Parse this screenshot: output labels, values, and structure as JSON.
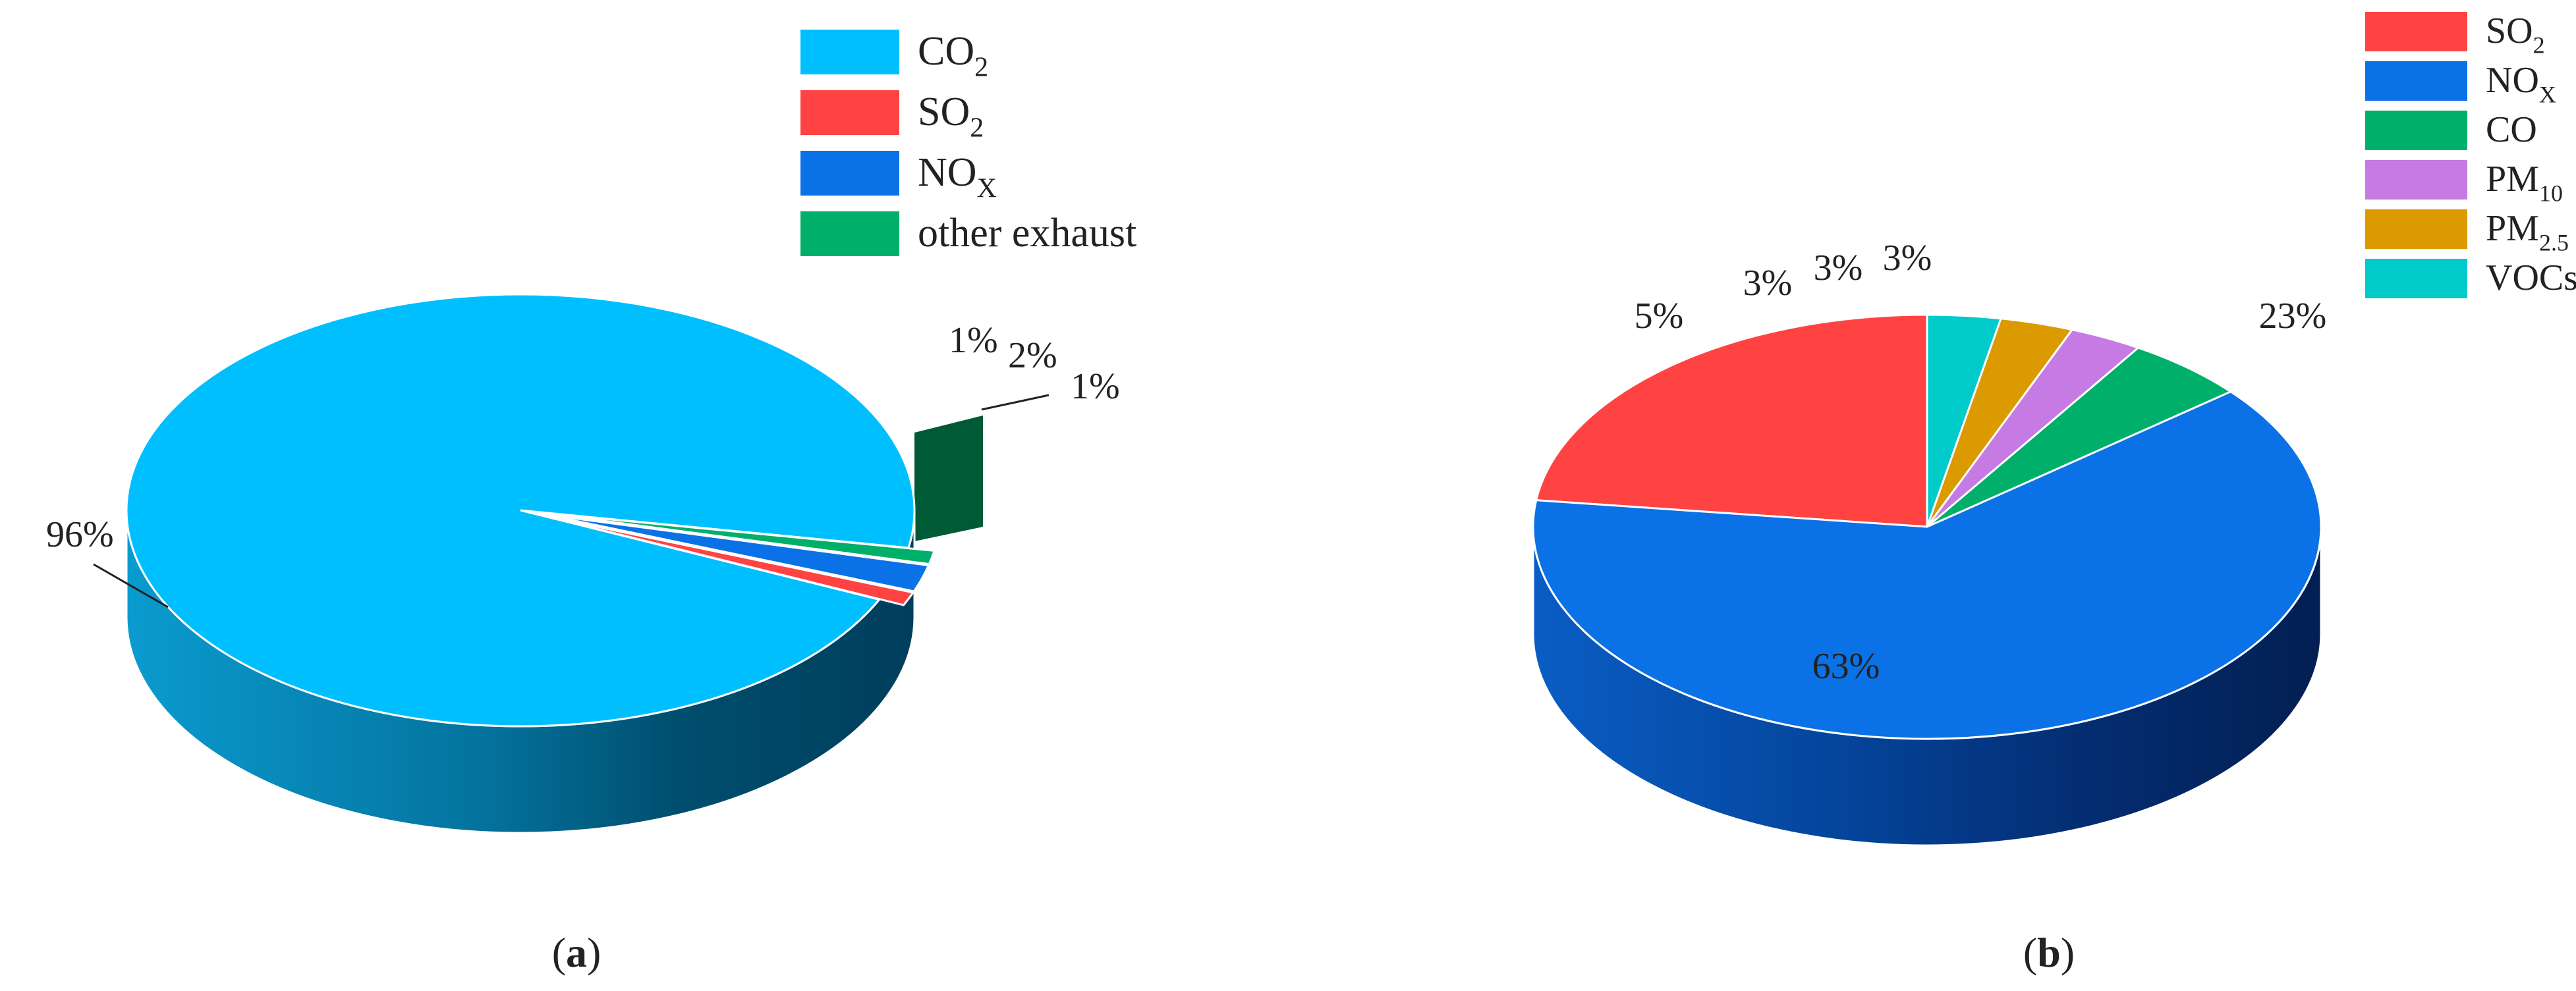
{
  "chart_data": [
    {
      "type": "pie",
      "panel_label": "a",
      "categories": [
        "CO2",
        "SO2",
        "NOX",
        "other exhaust"
      ],
      "values": [
        96,
        1,
        2,
        1
      ],
      "value_labels": [
        "96%",
        "1%",
        "2%",
        "1%"
      ],
      "colors": [
        "#00BFFF",
        "#FF4343",
        "#0A71E6",
        "#00AF6A"
      ],
      "legend": [
        {
          "main": "CO",
          "sub": "2",
          "color": "#00BFFF"
        },
        {
          "main": "SO",
          "sub": "2",
          "color": "#FF4343"
        },
        {
          "main": "NO",
          "sub": "X",
          "color": "#0A71E6"
        },
        {
          "main": "other exhaust",
          "sub": "",
          "color": "#00AF6A"
        }
      ],
      "exploded": [
        false,
        true,
        true,
        true
      ],
      "legend_position": "top-right"
    },
    {
      "type": "pie",
      "panel_label": "b",
      "categories": [
        "SO2",
        "NOX",
        "CO",
        "PM10",
        "PM2.5",
        "VOCs"
      ],
      "values": [
        23,
        63,
        5,
        3,
        3,
        3
      ],
      "value_labels": [
        "23%",
        "63%",
        "5%",
        "3%",
        "3%",
        "3%"
      ],
      "colors": [
        "#FF4343",
        "#0A71E6",
        "#00AF6A",
        "#C57BE3",
        "#DB9A00",
        "#00CACA"
      ],
      "legend": [
        {
          "main": "SO",
          "sub": "2",
          "color": "#FF4343"
        },
        {
          "main": "NO",
          "sub": "X",
          "color": "#0A71E6"
        },
        {
          "main": "CO",
          "sub": "",
          "color": "#00AF6A"
        },
        {
          "main": "PM",
          "sub": "10",
          "color": "#C57BE3"
        },
        {
          "main": "PM",
          "sub": "2.5",
          "color": "#DB9A00"
        },
        {
          "main": "VOCs",
          "sub": "",
          "color": "#00CACA"
        }
      ],
      "exploded": [
        false,
        false,
        false,
        false,
        false,
        false
      ],
      "legend_position": "top-right"
    }
  ]
}
